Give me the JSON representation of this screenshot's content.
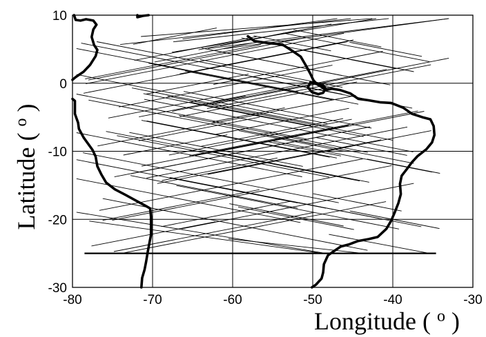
{
  "chart_data": {
    "type": "map",
    "xlabel": "Longitude",
    "ylabel": "Latitude",
    "unit_symbol": "o",
    "xlim": [
      -80,
      -30
    ],
    "ylim": [
      -30,
      10
    ],
    "xticks": [
      -80,
      -70,
      -60,
      -50,
      -40,
      -30
    ],
    "yticks": [
      -30,
      -20,
      -10,
      0,
      10
    ],
    "xtick_labels": [
      "-80",
      "-70",
      "-60",
      "-50",
      "-40",
      "-30"
    ],
    "ytick_labels": [
      "-30",
      "-20",
      "-10",
      "0",
      "10"
    ],
    "grid": true,
    "colors": {
      "coastline": "#000000",
      "tracks": "#000000",
      "grid": "#000000",
      "background": "#ffffff"
    },
    "coastlines": [
      {
        "name": "south-america-east-coast",
        "points": [
          [
            -58.1,
            6.9
          ],
          [
            -57.3,
            6.2
          ],
          [
            -55.6,
            5.9
          ],
          [
            -53.8,
            5.7
          ],
          [
            -52.6,
            4.8
          ],
          [
            -51.5,
            3.9
          ],
          [
            -50.8,
            2.5
          ],
          [
            -50.3,
            1.4
          ],
          [
            -49.9,
            0.4
          ],
          [
            -49.4,
            -0.2
          ],
          [
            -48.8,
            -0.6
          ],
          [
            -48.4,
            -1.0
          ],
          [
            -47.6,
            -0.8
          ],
          [
            -46.6,
            -1.0
          ],
          [
            -45.3,
            -1.5
          ],
          [
            -44.3,
            -2.3
          ],
          [
            -43.1,
            -2.5
          ],
          [
            -41.6,
            -2.8
          ],
          [
            -40.2,
            -2.9
          ],
          [
            -38.7,
            -3.6
          ],
          [
            -37.6,
            -4.5
          ],
          [
            -36.3,
            -5.0
          ],
          [
            -35.3,
            -5.3
          ],
          [
            -34.9,
            -6.3
          ],
          [
            -34.8,
            -7.6
          ],
          [
            -35.1,
            -8.7
          ],
          [
            -35.8,
            -9.7
          ],
          [
            -36.9,
            -10.7
          ],
          [
            -37.6,
            -11.6
          ],
          [
            -38.3,
            -12.7
          ],
          [
            -38.9,
            -13.6
          ],
          [
            -39.1,
            -14.8
          ],
          [
            -39.0,
            -16.3
          ],
          [
            -39.3,
            -17.6
          ],
          [
            -39.7,
            -18.8
          ],
          [
            -40.2,
            -20.2
          ],
          [
            -40.8,
            -21.4
          ],
          [
            -41.9,
            -22.6
          ],
          [
            -43.0,
            -22.9
          ],
          [
            -44.4,
            -23.2
          ],
          [
            -45.5,
            -23.7
          ],
          [
            -46.5,
            -24.0
          ],
          [
            -47.4,
            -24.7
          ],
          [
            -48.1,
            -25.3
          ],
          [
            -48.6,
            -26.6
          ],
          [
            -48.7,
            -27.8
          ],
          [
            -48.9,
            -28.7
          ],
          [
            -49.6,
            -29.6
          ],
          [
            -50.1,
            -30.0
          ]
        ]
      },
      {
        "name": "andes-west-boundary",
        "points": [
          [
            -79.8,
            10.0
          ],
          [
            -79.6,
            9.3
          ],
          [
            -79.0,
            9.2
          ],
          [
            -78.3,
            9.4
          ],
          [
            -77.4,
            9.2
          ],
          [
            -77.0,
            8.6
          ],
          [
            -77.4,
            7.9
          ],
          [
            -77.6,
            6.8
          ],
          [
            -77.3,
            5.6
          ],
          [
            -76.9,
            4.9
          ],
          [
            -77.1,
            4.0
          ],
          [
            -77.8,
            2.7
          ],
          [
            -78.6,
            1.7
          ],
          [
            -79.6,
            0.9
          ],
          [
            -80.0,
            0.5
          ]
        ]
      },
      {
        "name": "peru-chile-coast",
        "points": [
          [
            -80.0,
            -2.3
          ],
          [
            -79.7,
            -2.6
          ],
          [
            -79.7,
            -3.4
          ],
          [
            -79.7,
            -4.5
          ],
          [
            -79.3,
            -5.8
          ],
          [
            -79.2,
            -6.7
          ],
          [
            -78.6,
            -8.0
          ],
          [
            -77.5,
            -9.8
          ],
          [
            -77.1,
            -10.8
          ],
          [
            -76.9,
            -12.2
          ],
          [
            -76.4,
            -13.4
          ],
          [
            -75.8,
            -14.6
          ],
          [
            -74.7,
            -15.6
          ],
          [
            -73.4,
            -16.4
          ],
          [
            -72.0,
            -17.3
          ],
          [
            -70.9,
            -18.0
          ],
          [
            -70.3,
            -18.4
          ],
          [
            -70.2,
            -19.6
          ],
          [
            -70.2,
            -21.0
          ],
          [
            -70.2,
            -22.3
          ],
          [
            -70.4,
            -23.5
          ],
          [
            -70.6,
            -24.8
          ],
          [
            -70.8,
            -26.2
          ],
          [
            -71.0,
            -27.4
          ],
          [
            -71.3,
            -28.6
          ],
          [
            -71.4,
            -30.0
          ]
        ]
      },
      {
        "name": "caribbean-coast",
        "points": [
          [
            -71.9,
            10.0
          ],
          [
            -71.9,
            9.7
          ],
          [
            -71.2,
            9.9
          ],
          [
            -70.5,
            10.0
          ]
        ]
      },
      {
        "name": "marajo-island",
        "points": [
          [
            -50.3,
            0.1
          ],
          [
            -49.9,
            0.0
          ],
          [
            -49.3,
            -0.2
          ],
          [
            -48.7,
            -0.3
          ],
          [
            -48.4,
            -0.8
          ],
          [
            -48.7,
            -1.4
          ],
          [
            -49.3,
            -1.6
          ],
          [
            -50.1,
            -1.3
          ],
          [
            -50.6,
            -0.6
          ],
          [
            -50.3,
            0.1
          ]
        ]
      }
    ],
    "track_families": [
      {
        "name": "ascending-tracks",
        "count": 52,
        "slope_deg_per_deg": 0.23,
        "latitude_range": [
          -25,
          8
        ],
        "longitude_range": [
          -79,
          -38
        ]
      },
      {
        "name": "descending-tracks",
        "count": 55,
        "slope_deg_per_deg": -0.23,
        "latitude_range": [
          -25,
          8
        ],
        "longitude_range": [
          -78,
          -34
        ]
      },
      {
        "name": "southern-boundary-line",
        "latitude": -25.0,
        "longitude_range": [
          -78.5,
          -34.6
        ]
      }
    ]
  }
}
